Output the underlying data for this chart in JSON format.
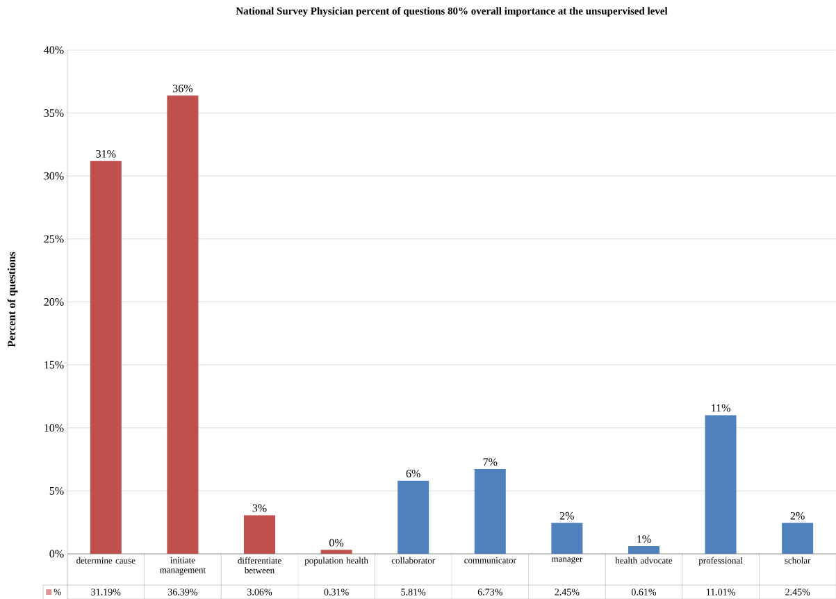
{
  "chart_data": {
    "type": "bar",
    "title": "National Survey Physician percent of questions 80% overall importance at the unsupervised level",
    "ylabel": "Percent of questions",
    "categories": [
      "determine cause",
      "initiate management",
      "differentiate between",
      "population health",
      "collaborator",
      "communicator",
      "manager",
      "health advocate",
      "professional",
      "scholar"
    ],
    "series": [
      {
        "name": "%",
        "color": "#c0504d",
        "colors": [
          "#c0504d",
          "#c0504d",
          "#c0504d",
          "#c0504d",
          "#4f81bd",
          "#4f81bd",
          "#4f81bd",
          "#4f81bd",
          "#4f81bd",
          "#4f81bd"
        ],
        "values": [
          31.19,
          36.39,
          3.06,
          0.31,
          5.81,
          6.73,
          2.45,
          0.61,
          11.01,
          2.45
        ],
        "value_labels": [
          "31.19%",
          "36.39%",
          "3.06%",
          "0.31%",
          "5.81%",
          "6.73%",
          "2.45%",
          "0.61%",
          "11.01%",
          "2.45%"
        ]
      }
    ],
    "annotations": [
      "31%",
      "36%",
      "3%",
      "0%",
      "6%",
      "7%",
      "2%",
      "1%",
      "11%",
      "2%"
    ],
    "ylim": [
      0,
      40
    ],
    "yticks": [
      {
        "value": 0,
        "label": "0%"
      },
      {
        "value": 5,
        "label": "5%"
      },
      {
        "value": 10,
        "label": "10%"
      },
      {
        "value": 15,
        "label": "15%"
      },
      {
        "value": 20,
        "label": "20%"
      },
      {
        "value": 25,
        "label": "25%"
      },
      {
        "value": 30,
        "label": "30%"
      },
      {
        "value": 35,
        "label": "35%"
      },
      {
        "value": 40,
        "label": "40%"
      }
    ],
    "grid": "y",
    "legend": "bottom left"
  }
}
